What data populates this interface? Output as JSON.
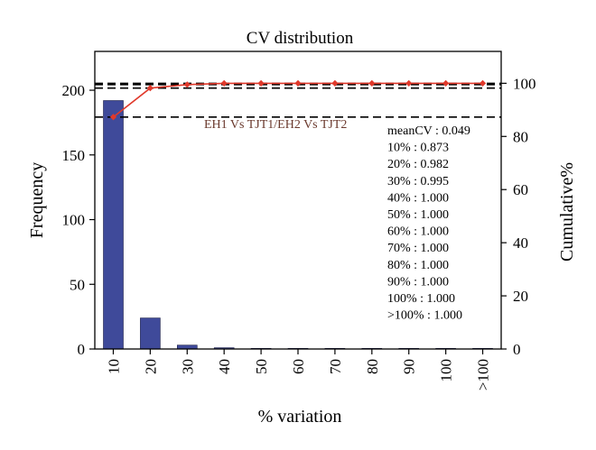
{
  "chart_data": {
    "type": "bar",
    "title": "CV distribution",
    "xlabel": "% variation",
    "ylabel": "Frequency",
    "y2label": "Cumulative%",
    "categories": [
      "10",
      "20",
      "30",
      "40",
      "50",
      "60",
      "70",
      "80",
      "90",
      "100",
      ">100"
    ],
    "ylim": [
      0,
      230
    ],
    "yticks": [
      0,
      50,
      100,
      150,
      200
    ],
    "y2lim": [
      0,
      112
    ],
    "y2ticks": [
      0,
      20,
      40,
      60,
      80,
      100
    ],
    "series": [
      {
        "type": "bar",
        "axis": "left",
        "values": [
          192,
          24,
          3,
          1,
          0.5,
          0.5,
          0.5,
          0.5,
          0.5,
          0.5,
          0.5
        ]
      },
      {
        "type": "line",
        "axis": "right",
        "values": [
          87.3,
          98.2,
          99.5,
          100,
          100,
          100,
          100,
          100,
          100,
          100,
          100
        ]
      }
    ],
    "reference_lines": [
      87.3,
      98.2,
      99.5,
      100
    ],
    "annotation": "EH1 Vs TJT1/EH2 Vs TJT2",
    "stats": [
      "meanCV : 0.049",
      "10% : 0.873",
      "20% : 0.982",
      "30% : 0.995",
      "40% : 1.000",
      "50% : 1.000",
      "60% : 1.000",
      "70% : 1.000",
      "80% : 1.000",
      "90% : 1.000",
      "100% : 1.000",
      ">100% : 1.000"
    ],
    "colors": {
      "bar": "#3f4a9a",
      "line": "#e0392b",
      "annotation": "#6b3a2e"
    }
  }
}
